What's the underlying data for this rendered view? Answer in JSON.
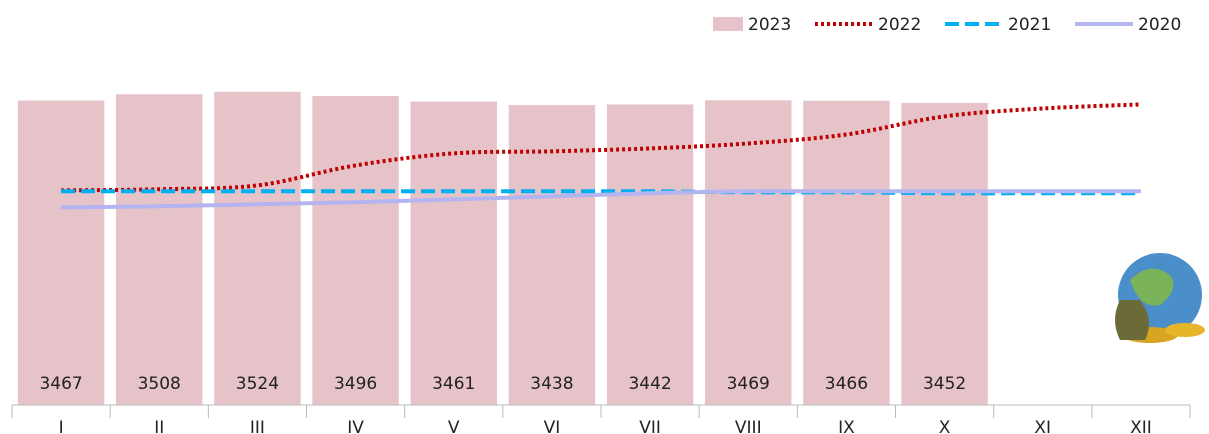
{
  "chart_data": {
    "type": "bar-line",
    "categories": [
      "I",
      "II",
      "III",
      "IV",
      "V",
      "VI",
      "VII",
      "VIII",
      "IX",
      "X",
      "XI",
      "XII"
    ],
    "ylim": [
      1500,
      3600
    ],
    "series": [
      {
        "name": "2023",
        "type": "bar",
        "color": "#e6c3c8",
        "values": [
          3467,
          3508,
          3524,
          3496,
          3461,
          3438,
          3442,
          3469,
          3466,
          3452,
          null,
          null
        ]
      },
      {
        "name": "2022",
        "type": "line",
        "style": "dotted",
        "color": "#c00000",
        "values": [
          2887,
          2894,
          2919,
          3048,
          3126,
          3139,
          3158,
          3190,
          3248,
          3365,
          3416,
          3442
        ]
      },
      {
        "name": "2021",
        "type": "line",
        "style": "dashed",
        "color": "#00b0f0",
        "values": [
          2881,
          2881,
          2881,
          2881,
          2881,
          2881,
          2881,
          2874,
          2874,
          2868,
          2868,
          2868
        ]
      },
      {
        "name": "2020",
        "type": "line",
        "style": "solid",
        "color": "#b4b4f0",
        "values": [
          2777,
          2784,
          2797,
          2810,
          2829,
          2848,
          2868,
          2881,
          2881,
          2881,
          2881,
          2881
        ]
      }
    ],
    "legend": "top-right"
  }
}
